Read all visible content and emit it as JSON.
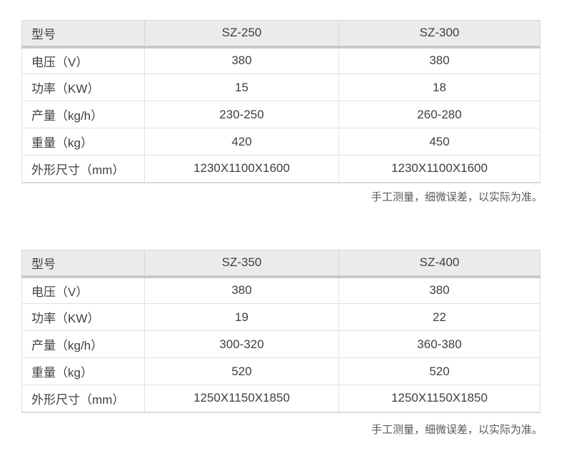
{
  "page": {
    "background": "#ffffff",
    "note_text": "手工测量，细微误差，以实际为准。"
  },
  "colors": {
    "header_bg": "#ebebeb",
    "header_separator": "#c9c9c9",
    "cell_border": "#e1e1e1",
    "text": "#3f3f3f",
    "note_text": "#595959"
  },
  "tables": [
    {
      "header": {
        "label": "型号",
        "models": [
          "SZ-250",
          "SZ-300"
        ]
      },
      "rows": [
        {
          "label": "电压（V）",
          "values": [
            "380",
            "380"
          ]
        },
        {
          "label": "功率（KW）",
          "values": [
            "15",
            "18"
          ]
        },
        {
          "label": "产量（kg/h）",
          "values": [
            "230-250",
            "260-280"
          ]
        },
        {
          "label": "重量（kg）",
          "values": [
            "420",
            "450"
          ]
        },
        {
          "label": "外形尺寸（mm）",
          "values": [
            "1230X1100X1600",
            "1230X1100X1600"
          ]
        }
      ],
      "note": "手工测量，细微误差，以实际为准。"
    },
    {
      "header": {
        "label": "型号",
        "models": [
          "SZ-350",
          "SZ-400"
        ]
      },
      "rows": [
        {
          "label": "电压（V）",
          "values": [
            "380",
            "380"
          ]
        },
        {
          "label": "功率（KW）",
          "values": [
            "19",
            "22"
          ]
        },
        {
          "label": "产量（kg/h）",
          "values": [
            "300-320",
            "360-380"
          ]
        },
        {
          "label": "重量（kg）",
          "values": [
            "520",
            "520"
          ]
        },
        {
          "label": "外形尺寸（mm）",
          "values": [
            "1250X1150X1850",
            "1250X1150X1850"
          ]
        }
      ],
      "note": "手工测量，细微误差，以实际为准。"
    }
  ]
}
